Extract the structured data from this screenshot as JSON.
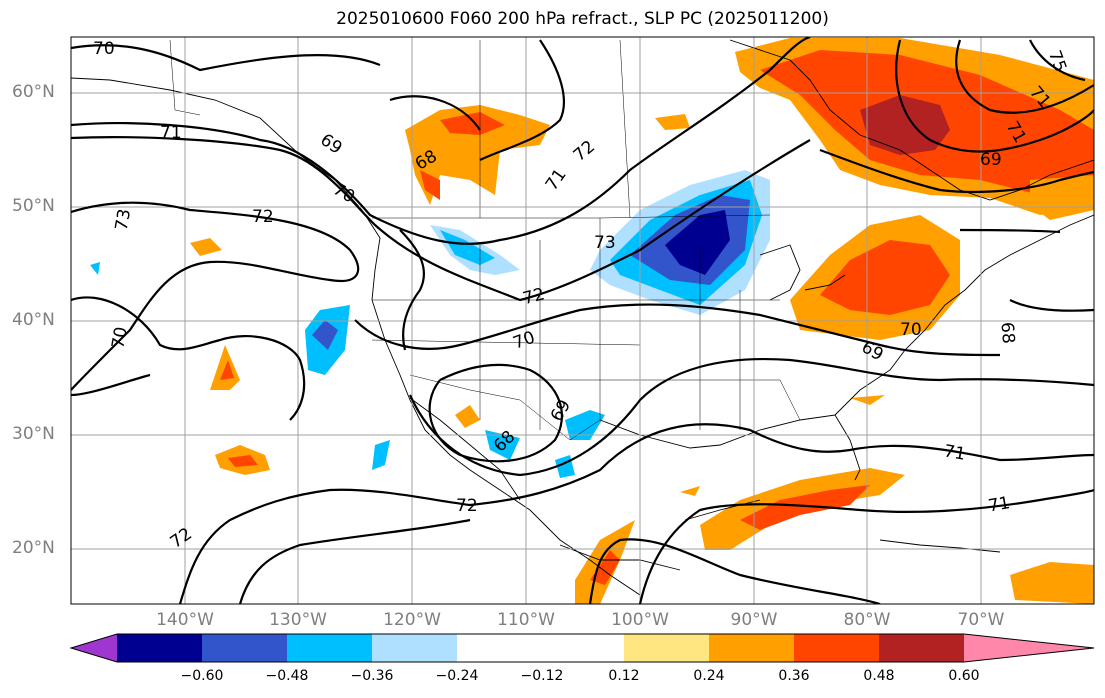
{
  "title": "2025010600 F060 200 hPa refract., SLP PC (2025011200)",
  "lat_labels": [
    "60°N",
    "50°N",
    "40°N",
    "30°N",
    "20°N"
  ],
  "lon_labels": [
    "140°W",
    "130°W",
    "120°W",
    "110°W",
    "100°W",
    "90°W",
    "80°W",
    "70°W"
  ],
  "contour_labels": [
    "70",
    "71",
    "72",
    "73",
    "69",
    "68",
    "70",
    "71",
    "72",
    "73",
    "70",
    "70",
    "69",
    "68",
    "72",
    "71",
    "71",
    "72",
    "75",
    "71",
    "69",
    "68",
    "71",
    "70",
    "69",
    "72"
  ],
  "colorbar": {
    "tick_labels": [
      "−0.60",
      "−0.48",
      "−0.36",
      "−0.24",
      "−0.12",
      "0.12",
      "0.24",
      "0.36",
      "0.48",
      "0.60"
    ],
    "colors": [
      "#a036d0",
      "#000090",
      "#3355cc",
      "#00bfff",
      "#b0e0ff",
      "#ffffff",
      "#ffe680",
      "#ffa000",
      "#ff4500",
      "#b22222",
      "#ff88aa"
    ]
  }
}
